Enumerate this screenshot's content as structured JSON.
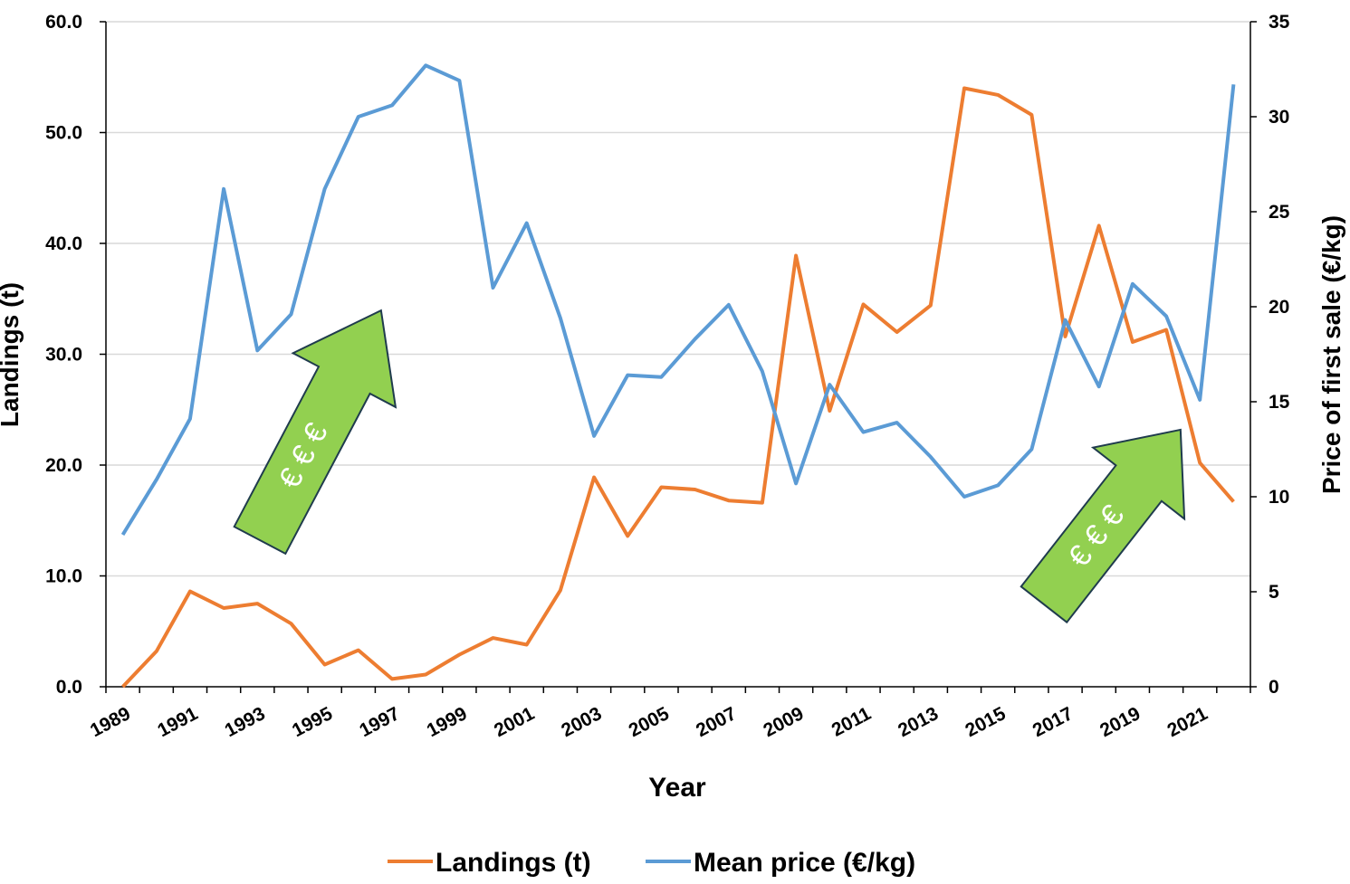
{
  "chart_data": {
    "type": "line",
    "x_label": "Year",
    "y_label": "Landings (t)",
    "y2_label": "Price of first sale (€/kg)",
    "categories": [
      "1989",
      null,
      "1991",
      null,
      "1993",
      null,
      "1995",
      null,
      "1997",
      null,
      "1999",
      null,
      "2001",
      null,
      "2003",
      null,
      "2005",
      null,
      "2007",
      null,
      "2009",
      null,
      "2011",
      null,
      "2013",
      null,
      "2015",
      null,
      "2017",
      null,
      "2019",
      null,
      "2021",
      null
    ],
    "series": [
      {
        "name": "Landings (t)",
        "color": "#ed7d31",
        "values": [
          0.0,
          3.2,
          8.6,
          7.1,
          7.5,
          5.7,
          2.0,
          3.3,
          0.7,
          1.1,
          2.9,
          4.4,
          3.8,
          8.7,
          18.9,
          13.6,
          18.0,
          17.8,
          16.8,
          16.6,
          38.9,
          24.9,
          34.5,
          32.0,
          34.4,
          54.0,
          53.4,
          51.6,
          31.6,
          41.6,
          31.1,
          32.2,
          20.2,
          16.7
        ]
      },
      {
        "name": "Mean price (€/kg)",
        "color": "#5b9bd5",
        "axis": "y2",
        "values": [
          8.0,
          10.9,
          14.1,
          26.2,
          17.7,
          19.6,
          26.2,
          30.0,
          30.6,
          32.7,
          31.9,
          21.0,
          24.4,
          19.4,
          13.2,
          16.4,
          16.3,
          18.3,
          20.1,
          16.6,
          10.7,
          15.9,
          13.4,
          13.9,
          12.1,
          10.0,
          10.6,
          12.5,
          19.3,
          15.8,
          21.2,
          19.5,
          15.1,
          31.7
        ]
      }
    ],
    "ylim": [
      0,
      60
    ],
    "yticks": [
      {
        "value": 0,
        "label": "0.0"
      },
      {
        "value": 10,
        "label": "10.0"
      },
      {
        "value": 20,
        "label": "20.0"
      },
      {
        "value": 30,
        "label": "30.0"
      },
      {
        "value": 40,
        "label": "40.0"
      },
      {
        "value": 50,
        "label": "50.0"
      },
      {
        "value": 60,
        "label": "60.0"
      }
    ],
    "y2lim": [
      0,
      35
    ],
    "y2ticks": [
      0,
      5,
      10,
      15,
      20,
      25,
      30,
      35
    ],
    "grid": true,
    "legend": "bottom",
    "annotations": [
      {
        "text": "€ € €"
      },
      {
        "text": "€ € €"
      }
    ]
  }
}
